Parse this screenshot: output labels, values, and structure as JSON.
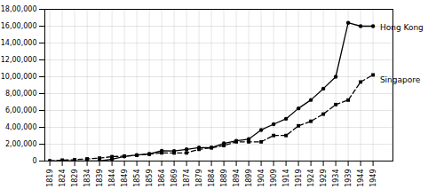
{
  "chart_data": {
    "type": "line",
    "x": [
      1819,
      1824,
      1829,
      1834,
      1839,
      1844,
      1849,
      1854,
      1859,
      1864,
      1869,
      1874,
      1879,
      1884,
      1889,
      1894,
      1899,
      1904,
      1909,
      1914,
      1919,
      1924,
      1929,
      1934,
      1939,
      1944,
      1949
    ],
    "series": [
      {
        "name": "Hong Kong",
        "color": "#000000",
        "marker": "circle",
        "line_style": "solid",
        "values": [
          0,
          0,
          0,
          0,
          0,
          23000,
          55000,
          72000,
          85000,
          121000,
          120000,
          139000,
          160000,
          160000,
          210000,
          240000,
          260000,
          369000,
          437000,
          501000,
          625000,
          725000,
          859000,
          1000000,
          1640000,
          1600000,
          1600000
        ]
      },
      {
        "name": "Singapore",
        "color": "#000000",
        "marker": "square",
        "line_style": "dashed",
        "values": [
          1000,
          11000,
          16000,
          26000,
          35000,
          52000,
          59000,
          69000,
          82000,
          97000,
          96000,
          97000,
          139000,
          157000,
          184000,
          228000,
          228000,
          228000,
          303000,
          303000,
          418000,
          472000,
          557000,
          670000,
          723000,
          938000,
          1022000
        ]
      }
    ],
    "annotations": [
      {
        "text": "Hong Kong",
        "x": 1950,
        "y": 1580000
      },
      {
        "text": "Singapore",
        "x": 1950,
        "y": 960000
      }
    ],
    "xlim": [
      1817,
      1957
    ],
    "xticks": [
      1819,
      1824,
      1829,
      1834,
      1839,
      1844,
      1849,
      1854,
      1859,
      1864,
      1869,
      1874,
      1879,
      1884,
      1889,
      1894,
      1899,
      1904,
      1909,
      1914,
      1919,
      1924,
      1929,
      1934,
      1939,
      1944,
      1949
    ],
    "ylim": [
      0,
      1800000
    ],
    "yticks": [
      0,
      {
        "value": 200000,
        "label": "2,00,000"
      },
      {
        "value": 400000,
        "label": "4,00,000"
      },
      {
        "value": 600000,
        "label": "6,00,000"
      },
      {
        "value": 800000,
        "label": "8,00,000"
      },
      {
        "value": 1000000,
        "label": "10,00,000"
      },
      {
        "value": 1200000,
        "label": "12,00,000"
      },
      {
        "value": 1400000,
        "label": "14,00,000"
      },
      {
        "value": 1600000,
        "label": "16,00,000"
      },
      {
        "value": 1800000,
        "label": "18,00,000"
      }
    ],
    "grid": true
  }
}
